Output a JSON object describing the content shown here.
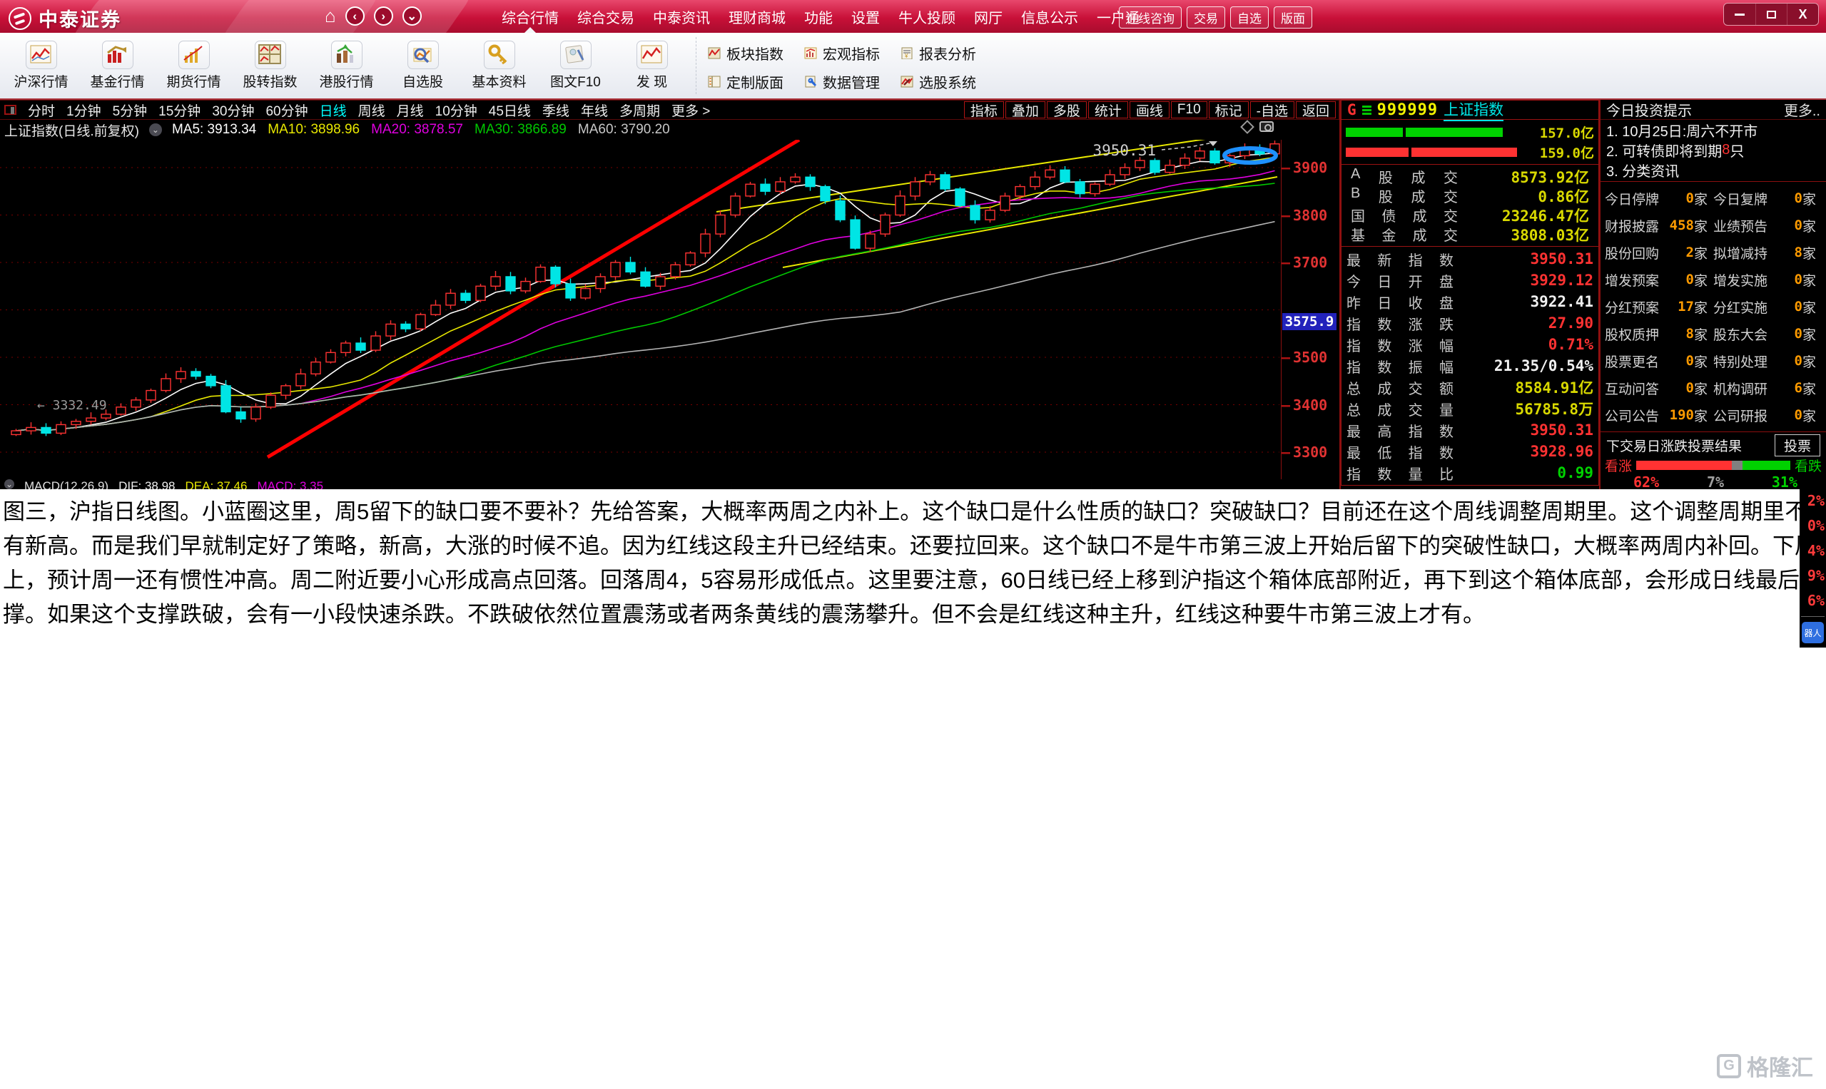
{
  "window": {
    "app_title": "中泰证券",
    "controls": [
      {
        "name": "minimize",
        "icon": "minimize-icon"
      },
      {
        "name": "maximize",
        "icon": "maximize-icon"
      },
      {
        "name": "close",
        "icon": "close-icon"
      }
    ]
  },
  "top_menu": {
    "nav_icons": [
      "home-icon",
      "back-icon",
      "forward-icon",
      "down-icon"
    ],
    "items": [
      "综合行情",
      "综合交易",
      "中泰资讯",
      "理财商城",
      "功能",
      "设置",
      "牛人投顾",
      "网厅",
      "信息公示",
      "一户通"
    ],
    "active_item": "综合行情",
    "right_buttons": [
      "在线咨询",
      "交易",
      "自选",
      "版面"
    ]
  },
  "toolbar": {
    "main": [
      {
        "label": "沪深行情",
        "icon": "hs-market-icon"
      },
      {
        "label": "基金行情",
        "icon": "fund-market-icon"
      },
      {
        "label": "期货行情",
        "icon": "futures-market-icon"
      },
      {
        "label": "股转指数",
        "icon": "otc-index-icon"
      },
      {
        "label": "港股行情",
        "icon": "hk-market-icon"
      },
      {
        "label": "自选股",
        "icon": "watchlist-icon"
      },
      {
        "label": "基本资料",
        "icon": "key-info-icon"
      },
      {
        "label": "图文F10",
        "icon": "f10-doc-icon"
      },
      {
        "label": "发 现",
        "icon": "discover-icon"
      }
    ],
    "secondary": [
      {
        "label": "板块指数",
        "icon": "sector-index-icon"
      },
      {
        "label": "宏观指标",
        "icon": "macro-indicator-icon"
      },
      {
        "label": "报表分析",
        "icon": "report-analysis-icon"
      },
      {
        "label": "定制版面",
        "icon": "custom-layout-icon"
      },
      {
        "label": "数据管理",
        "icon": "data-manage-icon"
      },
      {
        "label": "选股系统",
        "icon": "stock-picker-icon"
      }
    ]
  },
  "period_bar": {
    "tabs": [
      "分时",
      "1分钟",
      "5分钟",
      "15分钟",
      "30分钟",
      "60分钟",
      "日线",
      "周线",
      "月线",
      "10分钟",
      "45日线",
      "季线",
      "年线",
      "多周期"
    ],
    "active_tab": "日线",
    "more_label": "更多 >",
    "right_buttons": [
      "指标",
      "叠加",
      "多股",
      "统计",
      "画线",
      "F10",
      "标记",
      "-自选",
      "返回"
    ]
  },
  "symbol": {
    "prefix": "G",
    "code": "999999",
    "name": "上证指数"
  },
  "chart": {
    "header": {
      "title": "上证指数(日线.前复权)",
      "ma_items": [
        {
          "label": "MA5: 3913.34",
          "color": "#ffffff"
        },
        {
          "label": "MA10: 3898.96",
          "color": "#e8e800"
        },
        {
          "label": "MA20: 3878.57",
          "color": "#e000e0"
        },
        {
          "label": "MA30: 3866.89",
          "color": "#00c800"
        },
        {
          "label": "MA60: 3790.20",
          "color": "#c8c8c8"
        }
      ]
    },
    "y_ticks": [
      3900,
      3800,
      3700,
      3500,
      3400,
      3300
    ],
    "y_marker": {
      "label": "3575.9",
      "price": 3575.9
    },
    "price_label": "3950.31",
    "low_label": "← 3332.49",
    "macd": {
      "title": "MACD(12,26,9)",
      "items": [
        {
          "label": "DIF: 38.98",
          "color": "#f0f0f0"
        },
        {
          "label": "DEA: 37.46",
          "color": "#e8e800"
        },
        {
          "label": "MACD: 3.35",
          "color": "#e000e0"
        }
      ]
    },
    "closes": [
      3345,
      3352,
      3340,
      3358,
      3365,
      3372,
      3380,
      3395,
      3410,
      3430,
      3455,
      3470,
      3460,
      3440,
      3385,
      3370,
      3395,
      3420,
      3440,
      3465,
      3490,
      3510,
      3530,
      3515,
      3545,
      3570,
      3560,
      3590,
      3610,
      3635,
      3620,
      3650,
      3670,
      3640,
      3660,
      3690,
      3655,
      3625,
      3645,
      3670,
      3700,
      3680,
      3650,
      3670,
      3695,
      3720,
      3760,
      3800,
      3840,
      3865,
      3850,
      3870,
      3880,
      3860,
      3830,
      3790,
      3730,
      3760,
      3800,
      3840,
      3870,
      3885,
      3855,
      3820,
      3790,
      3810,
      3840,
      3860,
      3880,
      3895,
      3870,
      3845,
      3865,
      3885,
      3900,
      3915,
      3890,
      3905,
      3920,
      3935,
      3910,
      3925,
      3940,
      3929,
      3950
    ],
    "colors": {
      "up": "#ff3232",
      "down": "#00e5e5",
      "trend_line": "#ff0000",
      "channel_line": "#e8e800",
      "circle_marker": "#1e90ff",
      "grid": "#7a0000"
    }
  },
  "quote_panel": {
    "bid_ask_bars": [
      {
        "color": "#00d200",
        "segments": [
          80,
          136
        ],
        "value": "157.0亿"
      },
      {
        "color": "#ff3232",
        "segments": [
          88,
          148
        ],
        "value": "159.0亿"
      }
    ],
    "volume_rows": [
      {
        "label": "A股成交",
        "value": "8573.92亿",
        "color": "c-yellow"
      },
      {
        "label": "B股成交",
        "value": "0.86亿",
        "color": "c-yellow"
      },
      {
        "label": "国债成交",
        "value": "23246.47亿",
        "color": "c-yellow"
      },
      {
        "label": "基金成交",
        "value": "3808.03亿",
        "color": "c-yellow"
      }
    ],
    "index_rows": [
      {
        "label": "最新指数",
        "value": "3950.31",
        "color": "c-red"
      },
      {
        "label": "今日开盘",
        "value": "3929.12",
        "color": "c-red"
      },
      {
        "label": "昨日收盘",
        "value": "3922.41",
        "color": "c-white"
      },
      {
        "label": "指数涨跌",
        "value": "27.90",
        "color": "c-red"
      },
      {
        "label": "指数涨幅",
        "value": "0.71%",
        "color": "c-red"
      },
      {
        "label": "指数振幅",
        "value": "21.35/0.54%",
        "color": "c-white"
      },
      {
        "label": "总成交额",
        "value": "8584.91亿",
        "color": "c-yellow"
      },
      {
        "label": "总成交量",
        "value": "56785.8万",
        "color": "c-yellow"
      },
      {
        "label": "最高指数",
        "value": "3950.31",
        "color": "c-red"
      },
      {
        "label": "最低指数",
        "value": "3928.96",
        "color": "c-red"
      },
      {
        "label": "指数量比",
        "value": "0.99",
        "color": "c-green"
      }
    ]
  },
  "tips_panel": {
    "title": "今日投资提示",
    "more_label": "更多..",
    "items": [
      {
        "pre": "1. 10月25日:周六不开市",
        "hl": "",
        "post": ""
      },
      {
        "pre": "2. 可转债即将到期",
        "hl": "8",
        "post": "只"
      },
      {
        "pre": "3. 分类资讯",
        "hl": "",
        "post": ""
      }
    ],
    "grid_unit": "家",
    "grid": [
      [
        "今日停牌",
        "0",
        "今日复牌",
        "0"
      ],
      [
        "财报披露",
        "458",
        "业绩预告",
        "0"
      ],
      [
        "股份回购",
        "2",
        "拟增减持",
        "8"
      ],
      [
        "增发预案",
        "0",
        "增发实施",
        "0"
      ],
      [
        "分红预案",
        "17",
        "分红实施",
        "0"
      ],
      [
        "股权质押",
        "8",
        "股东大会",
        "0"
      ],
      [
        "股票更名",
        "0",
        "特别处理",
        "0"
      ],
      [
        "互动问答",
        "0",
        "机构调研",
        "6"
      ],
      [
        "公司公告",
        "190",
        "公司研报",
        "0"
      ]
    ],
    "vote": {
      "title": "下交易日涨跌投票结果",
      "button_label": "投票",
      "up_label": "看涨",
      "down_label": "看跌",
      "up_pct": "62%",
      "mid_pct": "7%",
      "down_pct": "31%",
      "up_value": 62,
      "mid_value": 7,
      "down_value": 31,
      "up_color": "#ff3232",
      "mid_color": "#808080",
      "down_color": "#00d200"
    }
  },
  "edge_strip": {
    "values": [
      "2%",
      "0%",
      "4%",
      "9%",
      "6%"
    ],
    "badge": "器人"
  },
  "overlay": {
    "lines": [
      "图三，沪指日线图。小蓝圈这里，周5留下的缺口要不要补？先给答案，大概率两周之内补上。这个缺口是什么性质的缺口？突破缺口？目前还在这个周线调整周期里。这个调整周期里不是说不会",
      "有新高。而是我们早就制定好了策略，新高，大涨的时候不追。因为红线这段主升已经结束。还要拉回来。这个缺口不是牛市第三波上开始后留下的突破性缺口，大概率两周内补回。下周细节",
      "上，预计周一还有惯性冲高。周二附近要小心形成高点回落。回落周4，5容易形成低点。这里要注意，60日线已经上移到沪指这个箱体底部附近，再下到这个箱体底部，会形成日线最后一个支",
      "撑。如果这个支撑跌破，会有一小段快速杀跌。不跌破依然位置震荡或者两条黄线的震荡攀升。但不会是红线这种主升，红线这种要牛市第三波上才有。"
    ]
  },
  "watermark": {
    "logo": "G",
    "text": "格隆汇"
  }
}
